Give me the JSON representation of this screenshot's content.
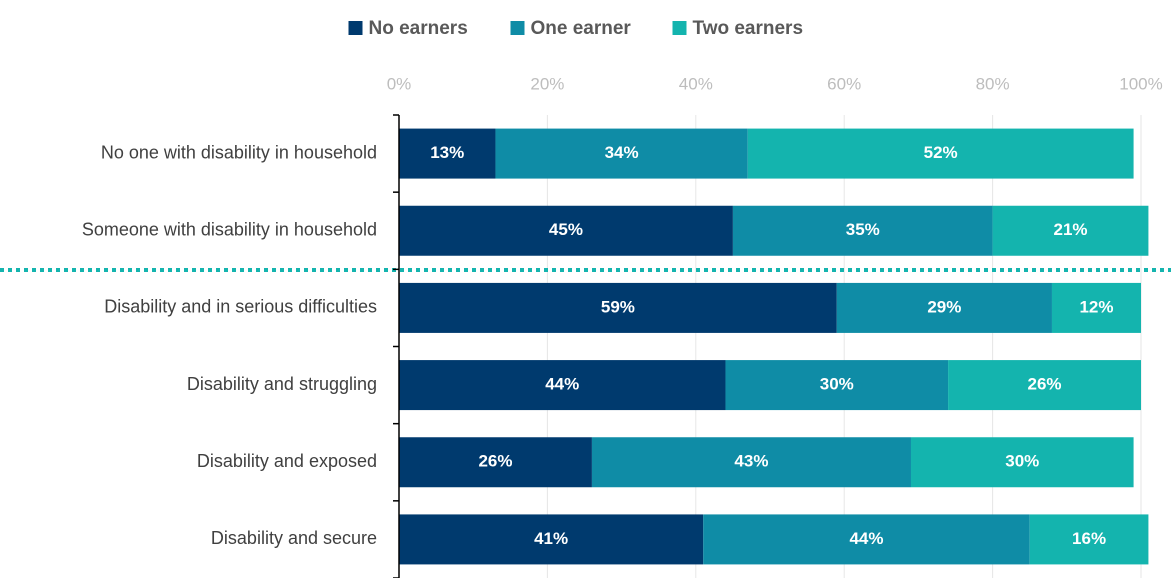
{
  "chart_data": {
    "type": "stacked_barh",
    "categories": [
      "No one with disability in household",
      "Someone with disability in household",
      "Disability and in serious difficulties",
      "Disability and struggling",
      "Disability and exposed",
      "Disability and secure"
    ],
    "series": [
      {
        "name": "No earners",
        "color": "#003a6e",
        "values": [
          13,
          45,
          59,
          44,
          26,
          41
        ],
        "value_labels": [
          "13%",
          "45%",
          "59%",
          "44%",
          "26%",
          "41%"
        ]
      },
      {
        "name": "One earner",
        "color": "#0f8ca6",
        "values": [
          34,
          35,
          29,
          30,
          43,
          44
        ],
        "value_labels": [
          "34%",
          "35%",
          "29%",
          "30%",
          "43%",
          "44%"
        ]
      },
      {
        "name": "Two earners",
        "color": "#14b4ae",
        "values": [
          52,
          21,
          12,
          26,
          30,
          16
        ],
        "value_labels": [
          "52%",
          "21%",
          "12%",
          "26%",
          "30%",
          "16%"
        ]
      }
    ],
    "xlim": [
      0,
      100
    ],
    "xticks": [
      {
        "value": 0,
        "label": "0%"
      },
      {
        "value": 20,
        "label": "20%"
      },
      {
        "value": 40,
        "label": "40%"
      },
      {
        "value": 60,
        "label": "60%"
      },
      {
        "value": 80,
        "label": "80%"
      },
      {
        "value": 100,
        "label": "100%"
      }
    ],
    "grid": true,
    "legend": "top"
  }
}
